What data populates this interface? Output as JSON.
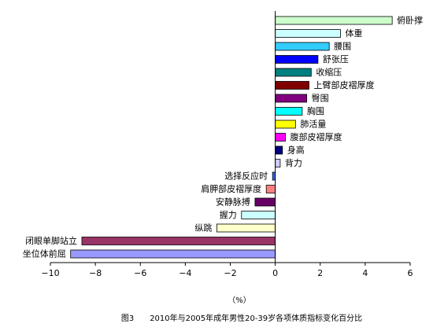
{
  "chart_data": {
    "type": "bar",
    "orientation": "horizontal",
    "categories": [
      "俯卧撑",
      "体重",
      "腰围",
      "舒张压",
      "收缩压",
      "上臂部皮褶厚度",
      "臀围",
      "胸围",
      "肺活量",
      "腹部皮褶厚度",
      "身高",
      "背力",
      "选择反应时",
      "肩胛部皮褶厚度",
      "安静脉搏",
      "握力",
      "纵跳",
      "闭眼单脚站立",
      "坐位体前屈"
    ],
    "values": [
      5.2,
      2.9,
      2.4,
      1.9,
      1.6,
      1.5,
      1.4,
      1.2,
      0.9,
      0.45,
      0.32,
      0.22,
      -0.12,
      -0.4,
      -0.9,
      -1.5,
      -2.6,
      -8.6,
      -9.1
    ],
    "colors": [
      "#ccffcc",
      "#ccffff",
      "#33ccff",
      "#0000ff",
      "#008080",
      "#800000",
      "#800080",
      "#00ffff",
      "#ffff00",
      "#ff00ff",
      "#000080",
      "#ccccff",
      "#3366ff",
      "#ff8080",
      "#660066",
      "#ccffff",
      "#ffffcc",
      "#993366",
      "#9999ff"
    ],
    "xlim": [
      -10,
      6
    ],
    "xticks": [
      -10,
      -8,
      -6,
      -4,
      -2,
      0,
      2,
      4,
      6
    ],
    "xlabel": "（%）",
    "grid": false,
    "legend": "none"
  },
  "caption": "图3　　2010年与2005年成年男性20-39岁各项体质指标变化百分比"
}
